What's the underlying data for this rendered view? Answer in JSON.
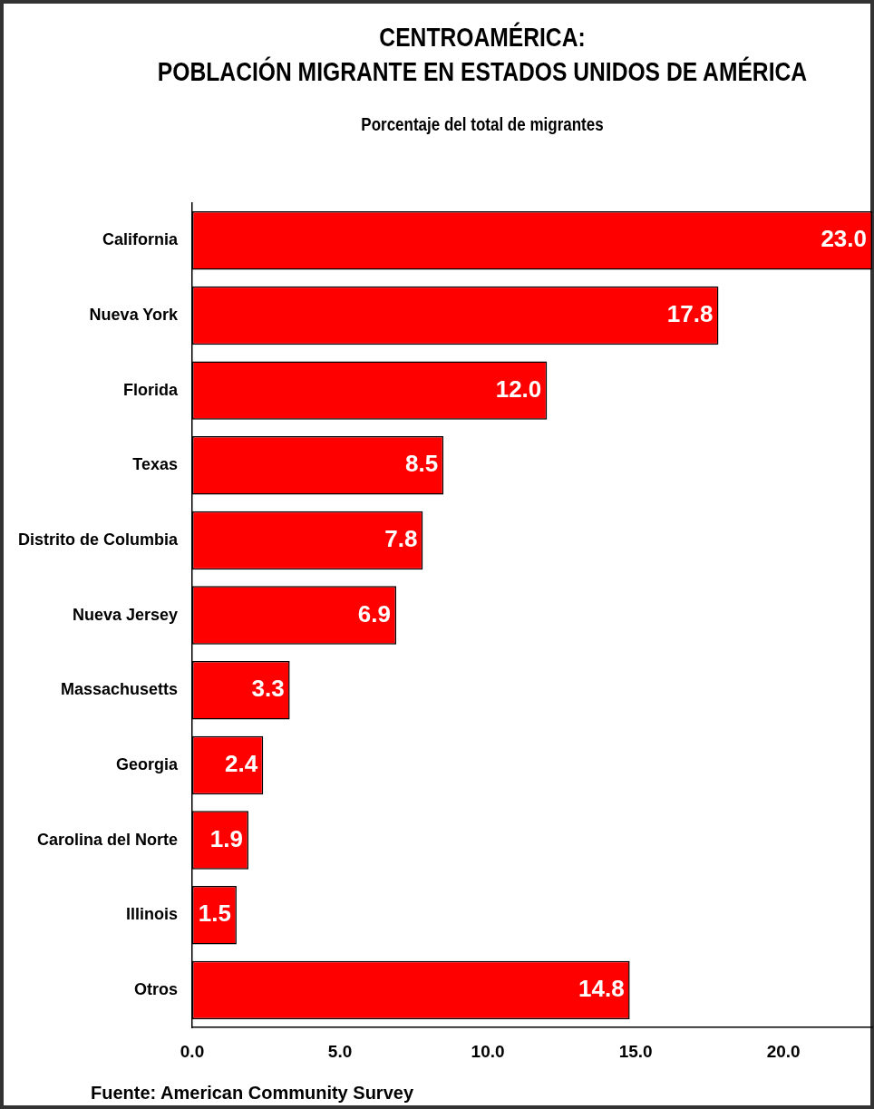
{
  "chart_data": {
    "type": "bar",
    "orientation": "horizontal",
    "title": "CENTROAMÉRICA:\nPOBLACIÓN MIGRANTE EN ESTADOS UNIDOS DE AMÉRICA",
    "subtitle": "Porcentaje del total de migrantes",
    "categories": [
      "California",
      "Nueva York",
      "Florida",
      "Texas",
      "Distrito de Columbia",
      "Nueva Jersey",
      "Massachusetts",
      "Georgia",
      "Carolina del Norte",
      "Illinois",
      "Otros"
    ],
    "values": [
      23.0,
      17.8,
      12.0,
      8.5,
      7.8,
      6.9,
      3.3,
      2.4,
      1.9,
      1.5,
      14.8
    ],
    "color": "#ff0000",
    "xlim": [
      0,
      23
    ],
    "xticks": [
      {
        "value": 0,
        "label": "0.0"
      },
      {
        "value": 5,
        "label": "5.0"
      },
      {
        "value": 10,
        "label": "10.0"
      },
      {
        "value": 15,
        "label": "15.0"
      },
      {
        "value": 20,
        "label": "20.0"
      }
    ],
    "value_labels": [
      "23.0",
      "17.8",
      "12.0",
      "8.5",
      "7.8",
      "6.9",
      "3.3",
      "2.4",
      "1.9",
      "1.5",
      "14.8"
    ],
    "grid": false,
    "legend": false,
    "annotations": [
      "Fuente:  American Community Survey"
    ]
  }
}
